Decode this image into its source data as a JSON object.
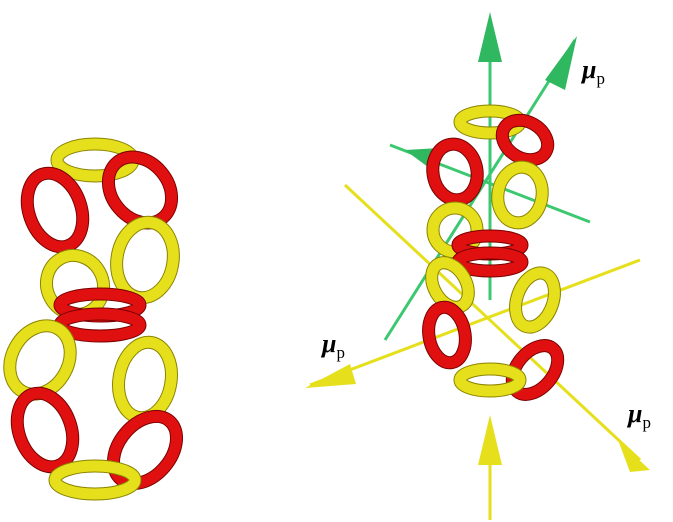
{
  "labels": [
    {
      "symbol": "μ",
      "subscript": "p"
    },
    {
      "symbol": "μ",
      "subscript": "p"
    },
    {
      "symbol": "μ",
      "subscript": "p"
    }
  ]
}
